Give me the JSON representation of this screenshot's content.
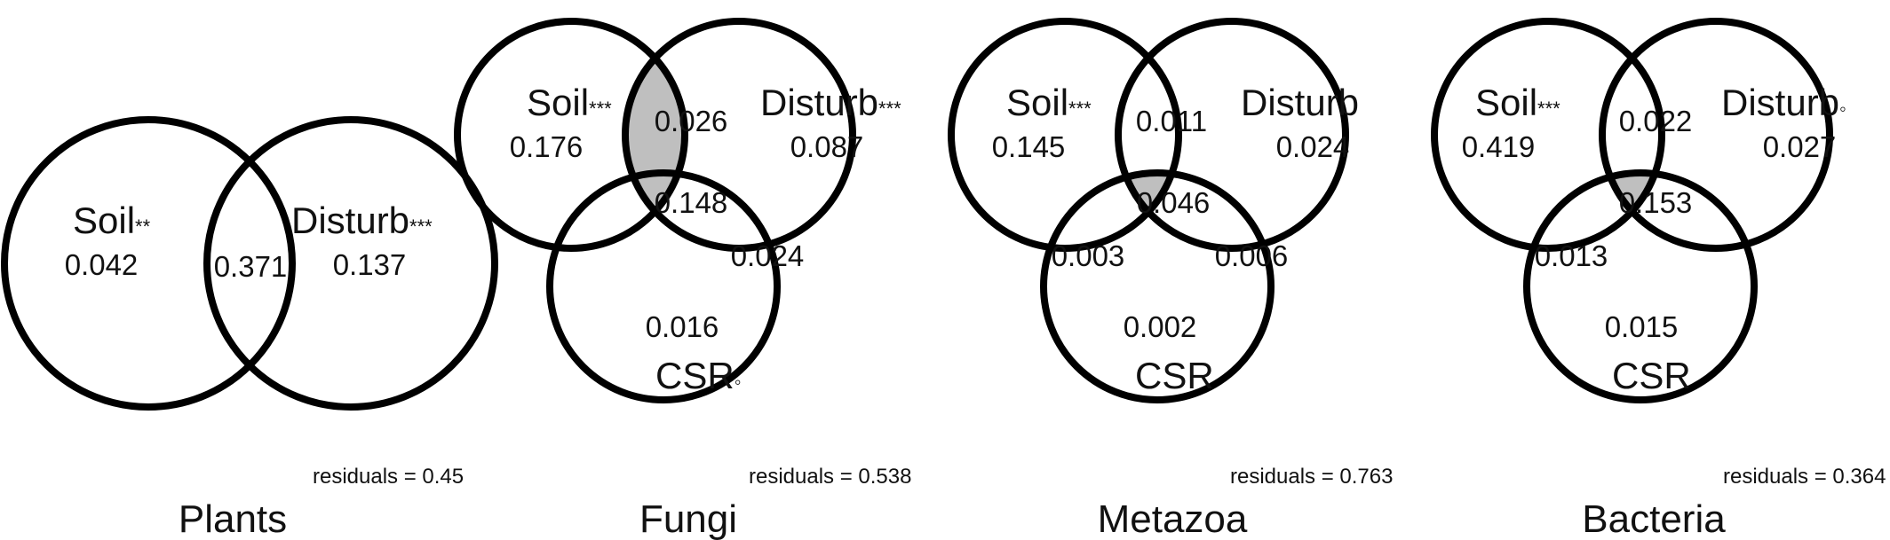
{
  "colors": {
    "stroke": "#000000",
    "shared_fill": "#bfbfbf",
    "text": "#111111",
    "background": "#ffffff"
  },
  "panels": [
    {
      "title": "Plants",
      "residuals": "residuals = 0.45",
      "sets": [
        {
          "label": "Soil",
          "stars": "**"
        },
        {
          "label": "Disturb",
          "stars": "***"
        }
      ],
      "values": {
        "a": "0.042",
        "ab": "0.371",
        "b": "0.137"
      }
    },
    {
      "title": "Fungi",
      "residuals": "residuals = 0.538",
      "sets": [
        {
          "label": "Soil",
          "stars": "***"
        },
        {
          "label": "Disturb",
          "stars": "***"
        },
        {
          "label": "CSR",
          "stars": "◦"
        }
      ],
      "values": {
        "a": "0.176",
        "ab": "0.026",
        "b": "0.087",
        "abc": "0.148",
        "ac": "",
        "bc": "0.024",
        "c": "0.016"
      }
    },
    {
      "title": "Metazoa",
      "residuals": "residuals = 0.763",
      "sets": [
        {
          "label": "Soil",
          "stars": "***"
        },
        {
          "label": "Disturb",
          "stars": ""
        },
        {
          "label": "CSR",
          "stars": ""
        }
      ],
      "values": {
        "a": "0.145",
        "ab": "0.011",
        "b": "0.024",
        "abc": "0.046",
        "ac": "0.003",
        "bc": "0.006",
        "c": "0.002"
      }
    },
    {
      "title": "Bacteria",
      "residuals": "residuals = 0.364",
      "sets": [
        {
          "label": "Soil",
          "stars": "***"
        },
        {
          "label": "Disturb",
          "stars": "◦"
        },
        {
          "label": "CSR",
          "stars": ""
        }
      ],
      "values": {
        "a": "0.419",
        "ab": "0.022",
        "b": "0.027",
        "abc": "0.153",
        "ac": "0.013",
        "bc": "",
        "c": "0.015"
      }
    }
  ]
}
